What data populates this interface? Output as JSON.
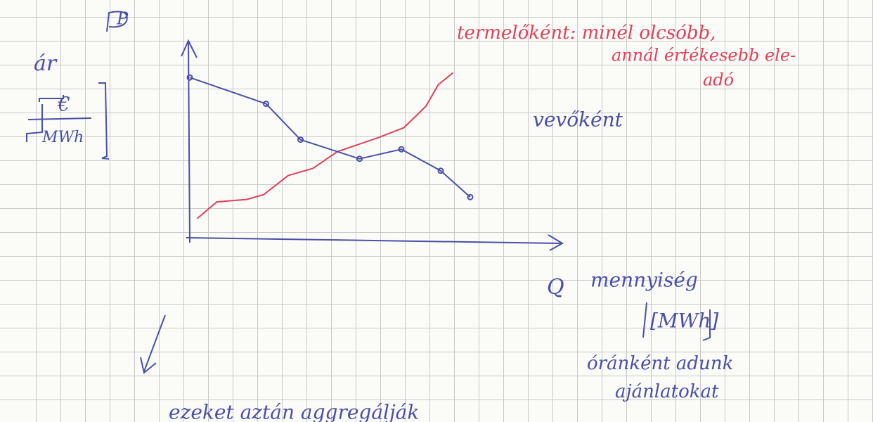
{
  "chart_data": {
    "type": "line",
    "x_label": "Q",
    "y_label": "ár",
    "xlim": [
      0,
      15
    ],
    "ylim": [
      0,
      8
    ],
    "series": [
      {
        "color": "#e0405a",
        "x": [
          0.3,
          1.1,
          2.3,
          3.0,
          4.0,
          5.0,
          6.0,
          7.7,
          8.7,
          9.6,
          10.1,
          10.7
        ],
        "values": [
          0.8,
          1.5,
          1.6,
          1.8,
          2.6,
          2.9,
          3.6,
          4.2,
          4.6,
          5.5,
          6.4,
          6.9
        ],
        "markers": false
      },
      {
        "color": "#4a4fa8",
        "x": [
          0,
          3.1,
          4.5,
          6.9,
          8.6,
          10.2,
          11.4
        ],
        "values": [
          6.7,
          5.6,
          4.1,
          3.3,
          3.7,
          2.8,
          1.7
        ],
        "markers": true
      }
    ],
    "annotations": [
      {
        "text": "P",
        "color": "#4a4fa8"
      },
      {
        "text": "€",
        "color": "#4a4fa8"
      },
      {
        "text": "MWh",
        "color": "#4a4fa8"
      },
      {
        "text": "termelőként: minél olcsóbb,",
        "color": "#e0405a"
      },
      {
        "text": "annál értékesebb ele-",
        "color": "#e0405a"
      },
      {
        "text": "adó",
        "color": "#e0405a"
      },
      {
        "text": "vevőként",
        "color": "#4a4fa8"
      },
      {
        "text": "mennyiség",
        "color": "#4a4fa8"
      },
      {
        "text": "[MWh]",
        "color": "#4a4fa8"
      },
      {
        "text": "óránként adunk",
        "color": "#4a4fa8"
      },
      {
        "text": "ajánlatokat",
        "color": "#4a4fa8"
      },
      {
        "text": "ezeket aztán aggregálják",
        "color": "#4a4fa8"
      }
    ]
  }
}
